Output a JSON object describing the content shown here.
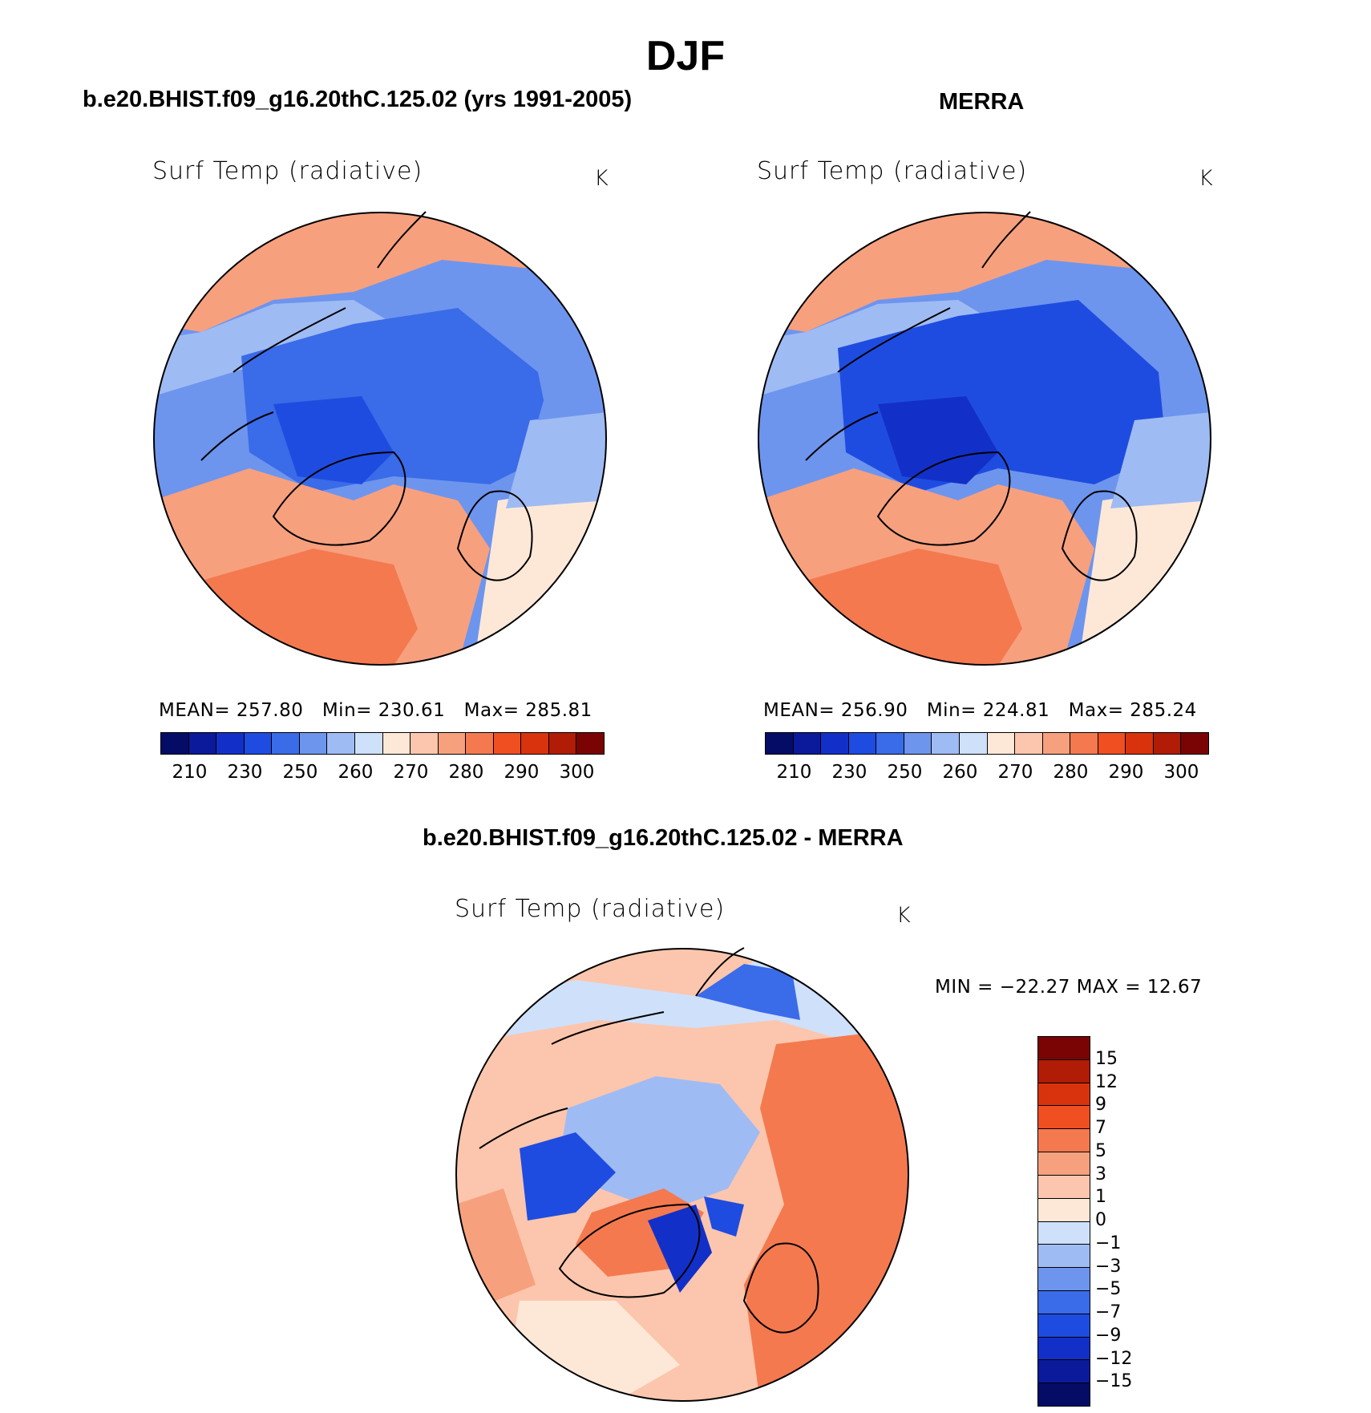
{
  "season": "DJF",
  "panels": [
    {
      "id": "model",
      "title": "b.e20.BHIST.f09_g16.20thC.125.02 (yrs 1991-2005)",
      "variable": "Surf Temp (radiative)",
      "unit": "K",
      "stats": {
        "mean_label": "MEAN=",
        "mean": "257.80",
        "min_label": "Min=",
        "min": "230.61",
        "max_label": "Max=",
        "max": "285.81"
      }
    },
    {
      "id": "obs",
      "title": "MERRA",
      "variable": "Surf Temp (radiative)",
      "unit": "K",
      "stats": {
        "mean_label": "MEAN=",
        "mean": "256.90",
        "min_label": "Min=",
        "min": "224.81",
        "max_label": "Max=",
        "max": "285.24"
      }
    }
  ],
  "abs_colorbar": {
    "ticks": [
      "210",
      "230",
      "250",
      "260",
      "270",
      "280",
      "290",
      "300"
    ],
    "colors": [
      "#040c66",
      "#0a1a9a",
      "#1230c8",
      "#1f4ce0",
      "#3a6be8",
      "#6d95ee",
      "#9fbbf3",
      "#cfe0fb",
      "#fde8d8",
      "#fbc6ad",
      "#f7a07e",
      "#f4794f",
      "#f04f22",
      "#d8330c",
      "#b01c06",
      "#7a0404"
    ]
  },
  "diff_panel": {
    "title": "b.e20.BHIST.f09_g16.20thC.125.02 - MERRA",
    "variable": "Surf Temp (radiative)",
    "unit": "K",
    "minmax": "MIN = −22.27 MAX =   12.67",
    "colorbar_ticks": [
      "15",
      "12",
      "9",
      "7",
      "5",
      "3",
      "1",
      "0",
      "−1",
      "−3",
      "−5",
      "−7",
      "−9",
      "−12",
      "−15"
    ],
    "colors": [
      "#7a0404",
      "#b01c06",
      "#d8330c",
      "#f04f22",
      "#f4794f",
      "#f7a07e",
      "#fbc6ad",
      "#fde8d8",
      "#cfe0fb",
      "#9fbbf3",
      "#6d95ee",
      "#3a6be8",
      "#1f4ce0",
      "#1230c8",
      "#0a1a9a",
      "#040c66"
    ]
  }
}
